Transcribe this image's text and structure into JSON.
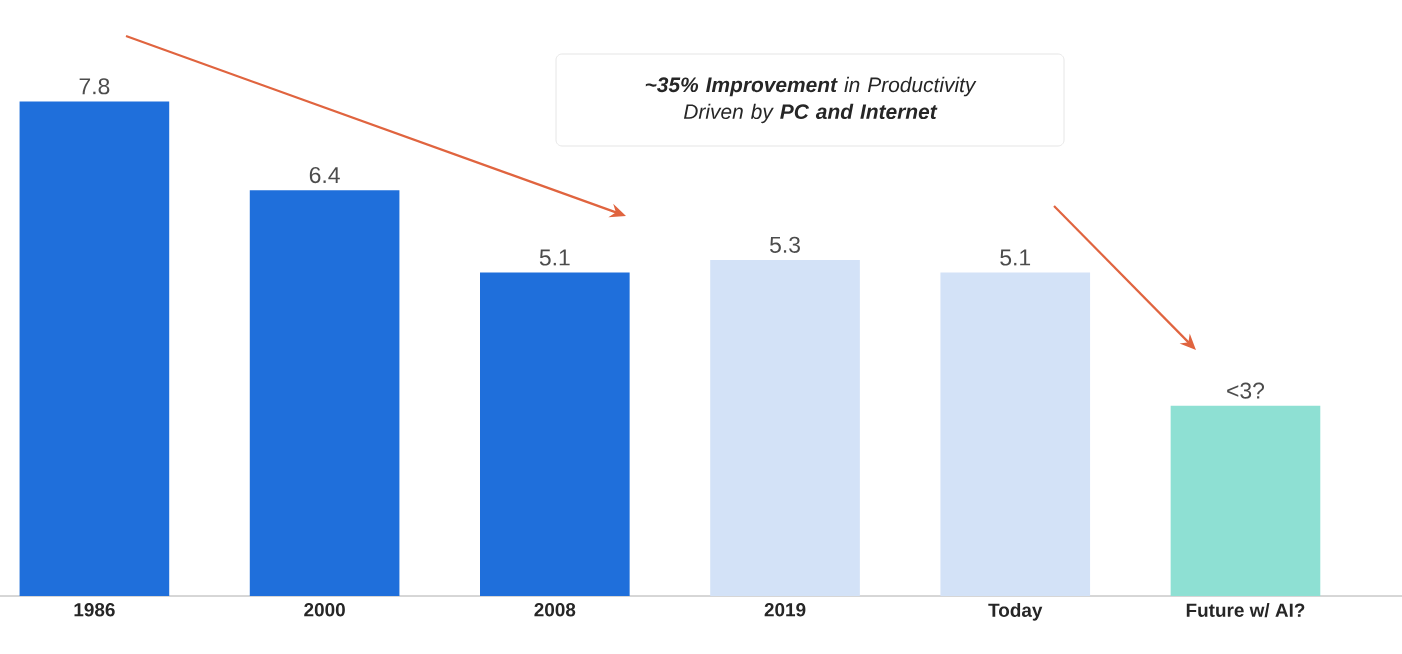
{
  "chart_data": {
    "type": "bar",
    "categories": [
      "1986",
      "2000",
      "2008",
      "2019",
      "Today",
      "Future w/ AI?"
    ],
    "values": [
      7.8,
      6.4,
      5.1,
      5.3,
      5.1,
      3
    ],
    "colors": [
      "#1f6fdb",
      "#1f6fdb",
      "#1f6fdb",
      "#d3e2f7",
      "#d3e2f7",
      "#8ee0d3"
    ],
    "value_labels": [
      "7.8",
      "6.4",
      "5.1",
      "5.3",
      "5.1",
      "<3?"
    ],
    "annotations": [
      "**~35% Improvement** in Productivity Driven by **PC and Internet**"
    ]
  }
}
